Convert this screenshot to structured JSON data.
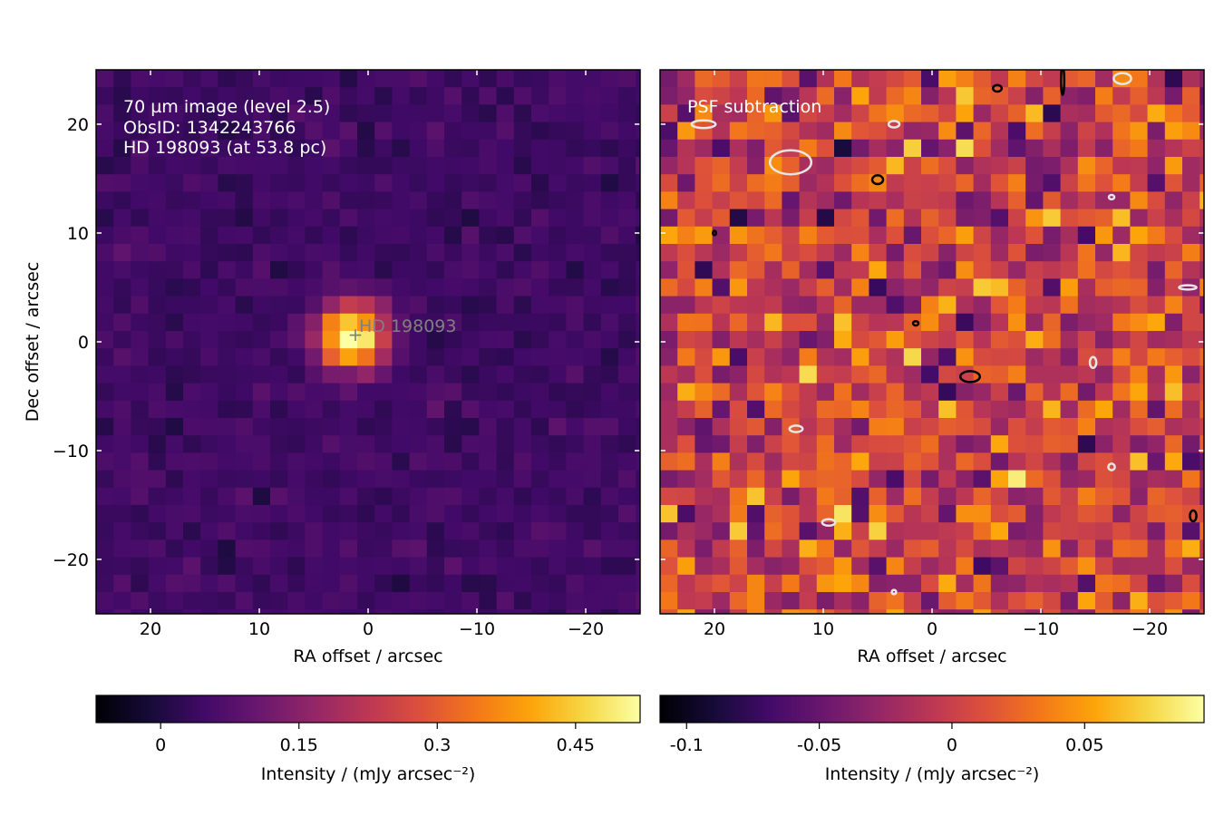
{
  "chart_data": [
    {
      "type": "heatmap",
      "panel": "left",
      "annotation_lines": [
        "70 µm image (level 2.5)",
        "ObsID: 1342243766",
        "HD 198093 (at 53.8 pc)"
      ],
      "source_label": "HD 198093",
      "source_position": [
        1.5,
        0.5
      ],
      "xlabel": "RA offset / arcsec",
      "ylabel": "Dec offset / arcsec",
      "xlim": [
        25,
        -25
      ],
      "ylim": [
        -25,
        25
      ],
      "x_ticks": [
        20,
        10,
        0,
        -10,
        -20
      ],
      "y_ticks": [
        20,
        10,
        0,
        -10,
        -20
      ],
      "x_tick_labels": [
        "20",
        "10",
        "0",
        "−10",
        "−20"
      ],
      "y_tick_labels": [
        "20",
        "10",
        "0",
        "−10",
        "−20"
      ],
      "grid": false,
      "colormap": "inferno",
      "value_range": [
        -0.07,
        0.52
      ],
      "pixel_size_arcsec": 1.6,
      "background_level": 0.045,
      "source_peak": 0.5,
      "values_note": "pixel values approximate: background ~0.03–0.07, source peak ~0.5",
      "colorbar": {
        "label": "Intensity / (mJy arcsec⁻²)",
        "ticks": [
          0,
          0.15,
          0.3,
          0.45
        ],
        "tick_labels": [
          "0",
          "0.15",
          "0.3",
          "0.45"
        ]
      }
    },
    {
      "type": "heatmap",
      "panel": "right",
      "annotation_lines": [
        "PSF subtraction"
      ],
      "xlabel": "RA offset / arcsec",
      "xlim": [
        25,
        -25
      ],
      "ylim": [
        -25,
        25
      ],
      "x_ticks": [
        20,
        10,
        0,
        -10,
        -20
      ],
      "x_tick_labels": [
        "20",
        "10",
        "0",
        "−10",
        "−20"
      ],
      "grid": false,
      "colormap": "inferno",
      "value_range": [
        -0.11,
        0.095
      ],
      "pixel_size_arcsec": 1.6,
      "contours": {
        "black": "positive residual",
        "white": "negative residual"
      },
      "colorbar": {
        "label": "Intensity / (mJy arcsec⁻²)",
        "ticks": [
          -0.1,
          -0.05,
          0,
          0.05
        ],
        "tick_labels": [
          "-0.1",
          "-0.05",
          "0",
          "0.05"
        ]
      }
    }
  ]
}
